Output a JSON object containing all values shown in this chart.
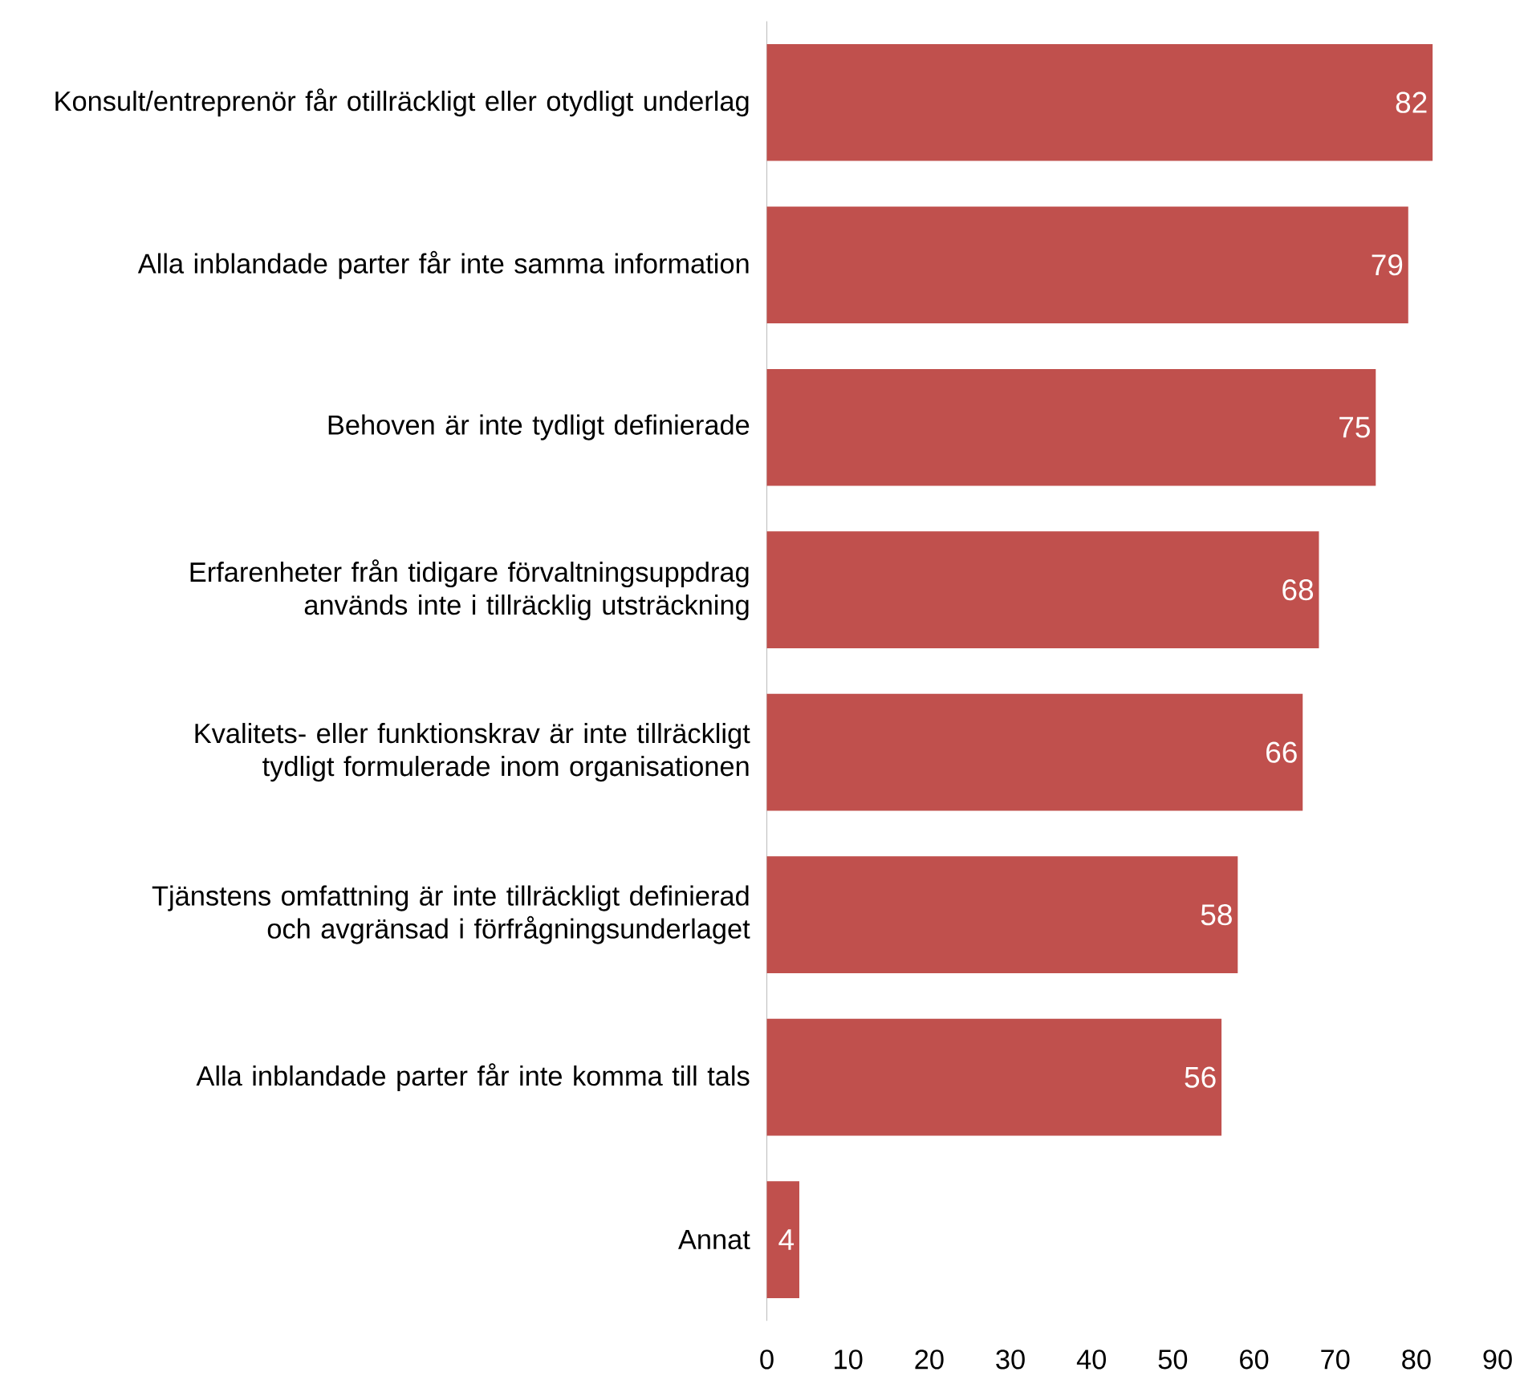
{
  "chart_data": {
    "type": "bar",
    "orientation": "horizontal",
    "categories": [
      "Konsult/entreprenör får otillräckligt eller otydligt underlag",
      "Alla inblandade parter får inte samma information",
      "Behoven är inte tydligt definierade",
      "Erfarenheter från tidigare förvaltningsuppdrag används inte i tillräcklig utsträckning",
      "Kvalitets- eller funktionskrav är inte tillräckligt tydligt formulerade inom organisationen",
      "Tjänstens omfattning är inte tillräckligt definierad och avgränsad i förfrågningsunderlaget",
      "Alla inblandade parter får inte komma till tals",
      "Annat"
    ],
    "values": [
      82,
      79,
      75,
      68,
      66,
      58,
      56,
      4
    ],
    "color": "#c0504d",
    "data_labels": true,
    "xlim": [
      0,
      90
    ],
    "xticks": [
      0,
      10,
      20,
      30,
      40,
      50,
      60,
      70,
      80,
      90
    ]
  }
}
